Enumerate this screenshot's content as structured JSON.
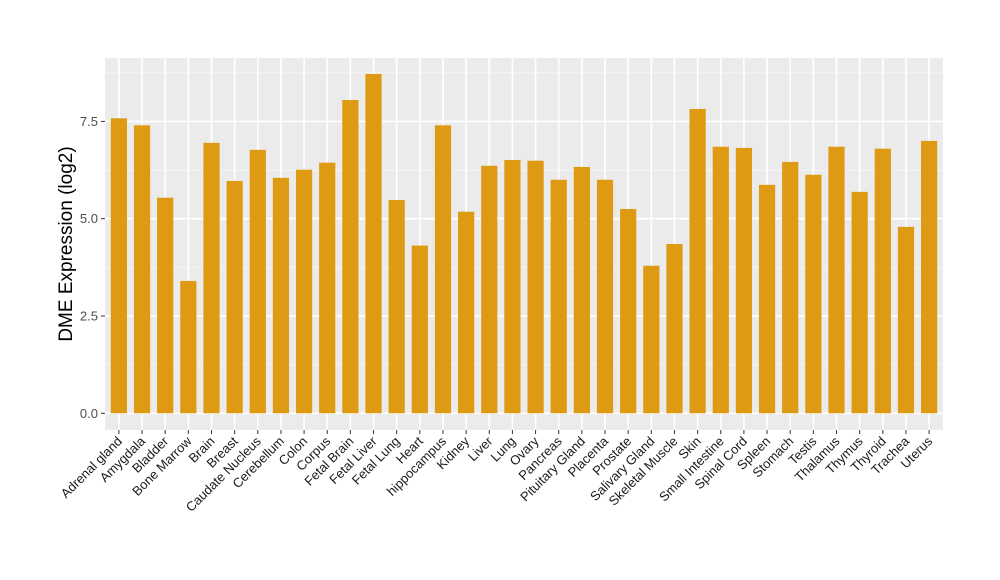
{
  "chart_data": {
    "type": "bar",
    "title": "",
    "xlabel": "",
    "ylabel": "DME Expression (log2)",
    "ylim": [
      -0.43,
      9.13
    ],
    "yticks": [
      0.0,
      2.5,
      5.0,
      7.5
    ],
    "ytick_labels": [
      "0.0",
      "2.5",
      "5.0",
      "7.5"
    ],
    "grid": true,
    "bar_color": "#DE9A12",
    "panel_color": "#EBEBEB",
    "categories": [
      "Adrenal gland",
      "Amygdala",
      "Bladder",
      "Bone Marrow",
      "Brain",
      "Breast",
      "Caudate Nucleus",
      "Cerebellum",
      "Colon",
      "Corpus",
      "Fetal Brain",
      "Fetal Liver",
      "Fetal Lung",
      "Heart",
      "hippocampus",
      "Kidney",
      "Liver",
      "Lung",
      "Ovary",
      "Pancreas",
      "Pituitary Gland",
      "Placenta",
      "Prostate",
      "Salivary Gland",
      "Skeletal Muscle",
      "Skin",
      "Small Intestine",
      "Spinal Cord",
      "Spleen",
      "Stomach",
      "Testis",
      "Thalamus",
      "Thymus",
      "Thyroid",
      "Trachea",
      "Uterus"
    ],
    "values": [
      7.58,
      7.4,
      5.54,
      3.4,
      6.95,
      5.97,
      6.77,
      6.05,
      6.26,
      6.44,
      8.05,
      8.72,
      5.48,
      4.31,
      7.4,
      5.18,
      6.36,
      6.51,
      6.49,
      6.0,
      6.33,
      6.0,
      5.25,
      3.79,
      4.35,
      7.82,
      6.85,
      6.82,
      5.87,
      6.46,
      6.13,
      6.85,
      5.69,
      6.8,
      4.79,
      7.0
    ]
  }
}
